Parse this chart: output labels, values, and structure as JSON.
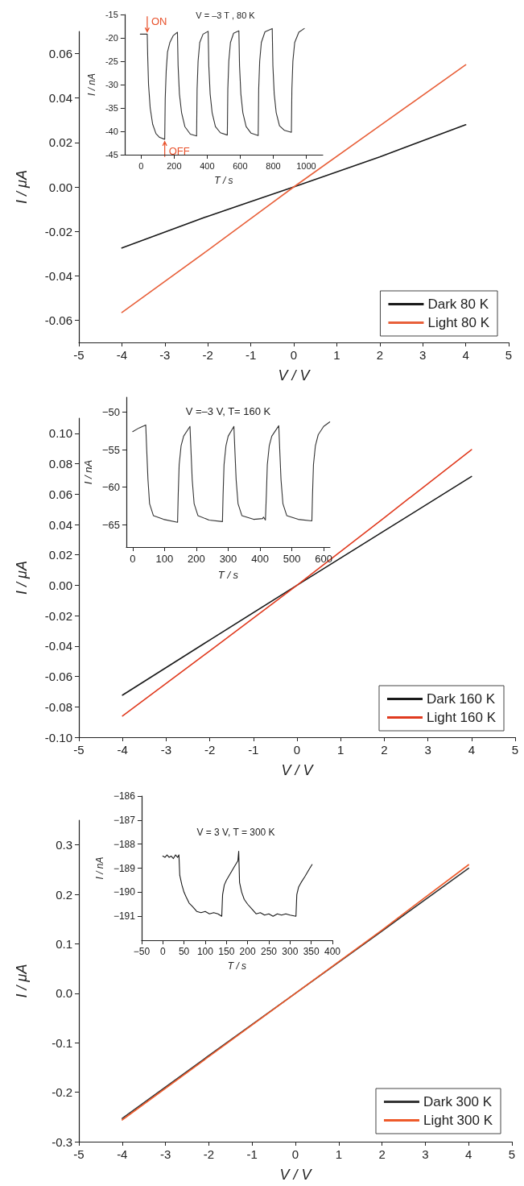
{
  "chart_data": [
    {
      "type": "line",
      "xlabel": "V / V",
      "ylabel": "I / μA",
      "x": [
        -4,
        -2,
        0,
        2,
        4
      ],
      "xlim": [
        -5,
        5
      ],
      "xticks": [
        -5,
        -4,
        -3,
        -2,
        -1,
        0,
        1,
        2,
        3,
        4,
        5
      ],
      "ylim": [
        -0.07,
        0.07
      ],
      "yticks": [
        -0.06,
        -0.04,
        -0.02,
        {
          "value": 0,
          "label": "0.00"
        },
        0.02,
        0.04,
        0.06
      ],
      "legend": "bottom right",
      "marker": "none",
      "series": [
        {
          "name": "Dark 80 K",
          "color": "#1a1a1a",
          "values": [
            -0.0275,
            -0.0132,
            0,
            0.0135,
            0.028
          ]
        },
        {
          "name": "Light 80 K",
          "color": "#e8603a",
          "values": [
            -0.0565,
            -0.0285,
            0,
            0.0275,
            0.055
          ]
        }
      ]
    },
    {
      "type": "line",
      "title": "V = –3 T , 80 K",
      "xlabel": "T / s",
      "ylabel": "I / nA",
      "xlim": [
        -100,
        1100
      ],
      "xticks": [
        0,
        200,
        400,
        600,
        800,
        1000
      ],
      "ylim": [
        -45,
        -15
      ],
      "yticks": [
        -45,
        -40,
        -35,
        -30,
        -25,
        -20,
        -15
      ],
      "marker": "none",
      "annotations": [
        {
          "text": "ON",
          "x": 37,
          "y": -19.2
        },
        {
          "text": "OFF",
          "x": 143,
          "y": -41.7
        }
      ],
      "x": [
        -5,
        37,
        40,
        45,
        55,
        70,
        90,
        112,
        143,
        146,
        152,
        160,
        174,
        195,
        220,
        224,
        232,
        245,
        265,
        298,
        336,
        339,
        345,
        355,
        375,
        406,
        410,
        418,
        430,
        450,
        480,
        522,
        525,
        531,
        541,
        560,
        592,
        596,
        604,
        616,
        636,
        666,
        709,
        712,
        718,
        728,
        750,
        794,
        798,
        806,
        818,
        838,
        868,
        910,
        913,
        919,
        930,
        955,
        988
      ],
      "series": [
        {
          "color": "#333333",
          "values": [
            -19.2,
            -19.2,
            -24,
            -30,
            -35,
            -38.5,
            -40.5,
            -41.3,
            -41.7,
            -33,
            -27,
            -23,
            -21,
            -19.5,
            -18.8,
            -26,
            -32,
            -36,
            -39,
            -40.6,
            -41,
            -31,
            -25,
            -21,
            -19.2,
            -18.6,
            -26,
            -32,
            -36,
            -39,
            -40.3,
            -40.8,
            -31,
            -25,
            -21,
            -19,
            -18.5,
            -26,
            -32,
            -36,
            -39,
            -40.4,
            -40.9,
            -31,
            -25,
            -21,
            -18.7,
            -18,
            -26,
            -32,
            -36,
            -38.8,
            -39.8,
            -40.2,
            -31,
            -25,
            -21,
            -18.8,
            -18
          ]
        }
      ]
    },
    {
      "type": "line",
      "xlabel": "V / V",
      "ylabel": "I / μA",
      "x": [
        -4,
        -2,
        0,
        2,
        4
      ],
      "xlim": [
        -5,
        5
      ],
      "xticks": [
        -5,
        -4,
        -3,
        -2,
        -1,
        0,
        1,
        2,
        3,
        4,
        5
      ],
      "ylim": [
        -0.1,
        0.11
      ],
      "yticks": [
        {
          "value": -0.1,
          "label": "-0.10"
        },
        -0.08,
        -0.06,
        -0.04,
        -0.02,
        {
          "value": 0,
          "label": "0.00"
        },
        0.02,
        0.04,
        0.06,
        0.08,
        {
          "value": 0.1,
          "label": "0.10"
        }
      ],
      "legend": "bottom right",
      "marker": "none",
      "series": [
        {
          "name": "Dark 160 K",
          "color": "#1a1a1a",
          "values": [
            -0.0723,
            -0.036,
            0,
            0.0358,
            0.0716
          ]
        },
        {
          "name": "Light 160 K",
          "color": "#e03a1e",
          "values": [
            -0.086,
            -0.0432,
            0,
            0.0445,
            0.0893
          ]
        }
      ]
    },
    {
      "type": "line",
      "title": "V =–3 V, T= 160 K",
      "xlabel": "T / s",
      "ylabel": "I / nA",
      "xlim": [
        -20,
        620
      ],
      "xticks": [
        0,
        100,
        200,
        300,
        400,
        500,
        600
      ],
      "ylim": [
        -68,
        -48
      ],
      "yticks": [
        {
          "value": -65,
          "label": "−65"
        },
        {
          "value": -60,
          "label": "−60"
        },
        {
          "value": -55,
          "label": "−55"
        },
        {
          "value": -50,
          "label": "−50"
        }
      ],
      "marker": "none",
      "x": [
        0,
        20,
        41,
        44,
        48,
        53,
        65,
        97,
        141,
        143,
        146,
        152,
        160,
        180,
        183,
        187,
        193,
        205,
        240,
        282,
        284,
        287,
        293,
        300,
        318,
        321,
        325,
        331,
        343,
        380,
        408,
        411,
        417,
        420,
        423,
        429,
        437,
        459,
        462,
        466,
        472,
        484,
        520,
        563,
        565,
        568,
        574,
        583,
        600,
        619
      ],
      "series": [
        {
          "color": "#333333",
          "values": [
            -52.6,
            -52.1,
            -51.7,
            -55,
            -59,
            -62.2,
            -63.8,
            -64.3,
            -64.7,
            -61,
            -57,
            -54.5,
            -53.2,
            -51.9,
            -55,
            -59,
            -62.2,
            -63.8,
            -64.4,
            -64.6,
            -61,
            -57,
            -54.5,
            -53.2,
            -51.9,
            -55,
            -59,
            -62.2,
            -63.8,
            -64.3,
            -64.2,
            -64,
            -64.4,
            -61,
            -57,
            -54.5,
            -53.2,
            -51.8,
            -55,
            -59,
            -62.2,
            -63.8,
            -64.3,
            -64.5,
            -61,
            -57,
            -54.5,
            -53,
            -51.9,
            -51.3
          ]
        }
      ]
    },
    {
      "type": "line",
      "xlabel": "V / V",
      "ylabel": "I / μA",
      "x": [
        -4,
        -2,
        0,
        2,
        4
      ],
      "xlim": [
        -5,
        5
      ],
      "xticks": [
        -5,
        -4,
        -3,
        -2,
        -1,
        0,
        1,
        2,
        3,
        4,
        5
      ],
      "ylim": [
        -0.3,
        0.35
      ],
      "yticks": [
        -0.3,
        -0.2,
        -0.1,
        {
          "value": 0,
          "label": "0.0"
        },
        0.1,
        0.2,
        0.3
      ],
      "legend": "bottom right",
      "marker": "none",
      "series": [
        {
          "name": "Dark 300 K",
          "color": "#333333",
          "values": [
            -0.253,
            -0.126,
            0,
            0.126,
            0.253
          ]
        },
        {
          "name": "Light 300 K",
          "color": "#ee5a2a",
          "values": [
            -0.256,
            -0.128,
            0,
            0.128,
            0.26
          ]
        }
      ]
    },
    {
      "type": "line",
      "title": "V = 3 V, T = 300 K",
      "xlabel": "T / s",
      "ylabel": "I / nA",
      "xlim": [
        -50,
        400
      ],
      "xticks": [
        {
          "value": -50,
          "label": "−50"
        },
        0,
        50,
        100,
        150,
        200,
        250,
        300,
        350,
        400
      ],
      "ylim": [
        -192,
        -186
      ],
      "yticks": [
        {
          "value": -191,
          "label": "−191"
        },
        {
          "value": -190,
          "label": "−190"
        },
        {
          "value": -189,
          "label": "−189"
        },
        {
          "value": -188,
          "label": "−188"
        },
        {
          "value": -187,
          "label": "−187"
        },
        {
          "value": -186,
          "label": "−186"
        }
      ],
      "marker": "none",
      "x": [
        0,
        5,
        10,
        15,
        20,
        25,
        30,
        35,
        38,
        40,
        45,
        50,
        55,
        62,
        70,
        80,
        90,
        100,
        110,
        120,
        130,
        139,
        141,
        145,
        150,
        160,
        170,
        177,
        179,
        181,
        186,
        192,
        200,
        210,
        220,
        230,
        240,
        250,
        260,
        270,
        280,
        290,
        300,
        314,
        316,
        320,
        326,
        335,
        345,
        352
      ],
      "series": [
        {
          "color": "#1a1a1a",
          "values": [
            -188.5,
            -188.55,
            -188.45,
            -188.55,
            -188.5,
            -188.6,
            -188.45,
            -188.55,
            -188.45,
            -189.3,
            -189.7,
            -190,
            -190.2,
            -190.45,
            -190.6,
            -190.8,
            -190.85,
            -190.8,
            -190.9,
            -190.85,
            -190.9,
            -191,
            -190.1,
            -189.7,
            -189.5,
            -189.2,
            -188.9,
            -188.7,
            -188.3,
            -189.6,
            -190,
            -190.3,
            -190.5,
            -190.7,
            -190.9,
            -190.85,
            -190.95,
            -190.9,
            -191,
            -190.9,
            -190.95,
            -190.9,
            -190.95,
            -191,
            -190.1,
            -189.8,
            -189.6,
            -189.35,
            -189.05,
            -188.85
          ]
        }
      ]
    }
  ]
}
